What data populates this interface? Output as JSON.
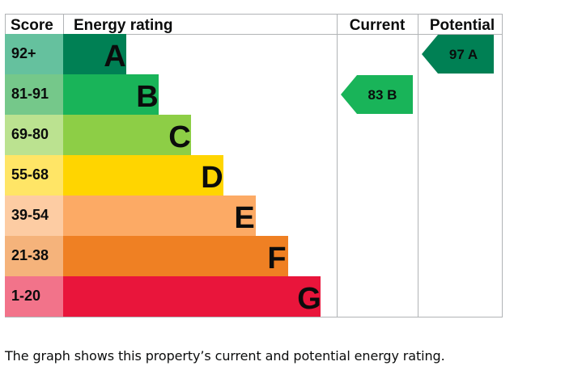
{
  "headers": {
    "score": "Score",
    "energy_rating": "Energy rating",
    "current": "Current",
    "potential": "Potential"
  },
  "caption": "The graph shows this property’s current and potential energy rating.",
  "chart_data": {
    "type": "bar",
    "bands": [
      {
        "letter": "A",
        "range": "92+",
        "color": "#008054",
        "score_color": "#65c19e"
      },
      {
        "letter": "B",
        "range": "81-91",
        "color": "#19b459",
        "score_color": "#75c88a"
      },
      {
        "letter": "C",
        "range": "69-80",
        "color": "#8dce46",
        "score_color": "#bbe290"
      },
      {
        "letter": "D",
        "range": "55-68",
        "color": "#ffd500",
        "score_color": "#ffe566"
      },
      {
        "letter": "E",
        "range": "39-54",
        "color": "#fcaa65",
        "score_color": "#fdcca3"
      },
      {
        "letter": "F",
        "range": "21-38",
        "color": "#ef8023",
        "score_color": "#f5b37b"
      },
      {
        "letter": "G",
        "range": "1-20",
        "color": "#e9153b",
        "score_color": "#f2738a"
      }
    ],
    "current": {
      "score": 83,
      "letter": "B",
      "label": "83  B",
      "color": "#19b459"
    },
    "potential": {
      "score": 97,
      "letter": "A",
      "label": "97  A",
      "color": "#008054"
    }
  }
}
